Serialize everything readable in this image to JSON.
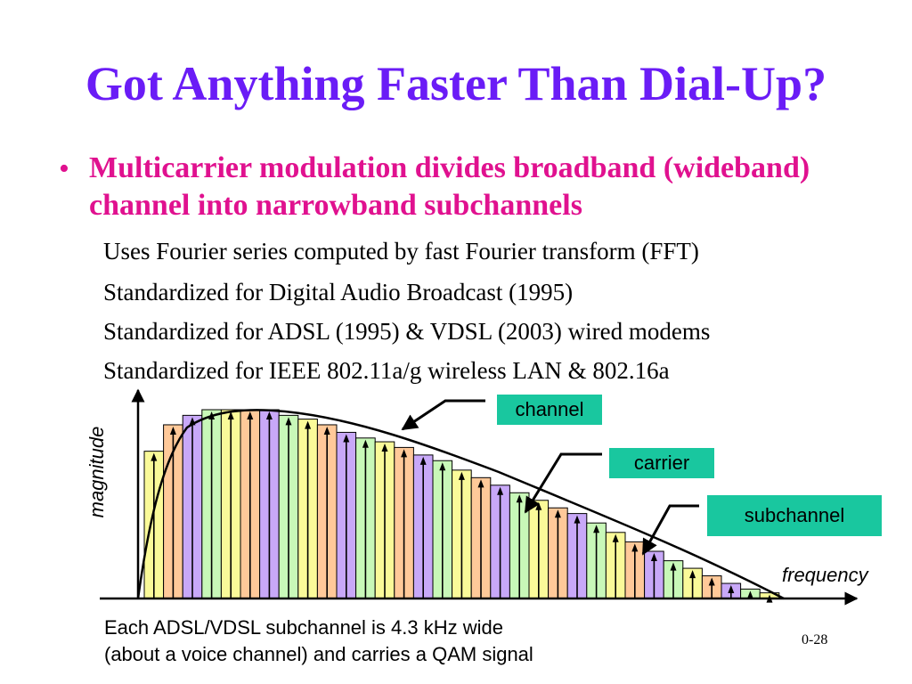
{
  "slide": {
    "title": "Got Anything Faster Than Dial-Up?",
    "bullet": "Multicarrier modulation divides broadband (wideband) channel into narrowband subchannels",
    "subpoints": [
      "Uses Fourier series computed by fast Fourier transform (FFT)",
      "Standardized for Digital Audio Broadcast (1995)",
      "Standardized for ADSL (1995) & VDSL (2003) wired modems",
      "Standardized for IEEE 802.11a/g wireless LAN & 802.16a"
    ],
    "caption_line1": "Each ADSL/VDSL subchannel is 4.3 kHz wide",
    "caption_line2": "(about a voice channel) and carries a QAM signal",
    "page_number": "0-28"
  },
  "diagram": {
    "labels": {
      "channel": "channel",
      "carrier": "carrier",
      "subchannel": "subchannel",
      "y_axis": "magnitude",
      "x_axis": "frequency"
    },
    "colors": {
      "title": "#6a1cf6",
      "bullet": "#e0118f",
      "label_bg": "#19c79f",
      "subchannel_fills": [
        "#fafa99",
        "#ffc999",
        "#c8a8f8",
        "#c8f8b8"
      ]
    },
    "subchannel_magnitudes": [
      0.78,
      0.92,
      0.97,
      1.0,
      1.0,
      1.0,
      1.0,
      0.97,
      0.95,
      0.92,
      0.88,
      0.85,
      0.83,
      0.8,
      0.76,
      0.73,
      0.68,
      0.64,
      0.6,
      0.56,
      0.52,
      0.48,
      0.45,
      0.4,
      0.35,
      0.3,
      0.25,
      0.2,
      0.16,
      0.12,
      0.08,
      0.05,
      0.03
    ]
  }
}
